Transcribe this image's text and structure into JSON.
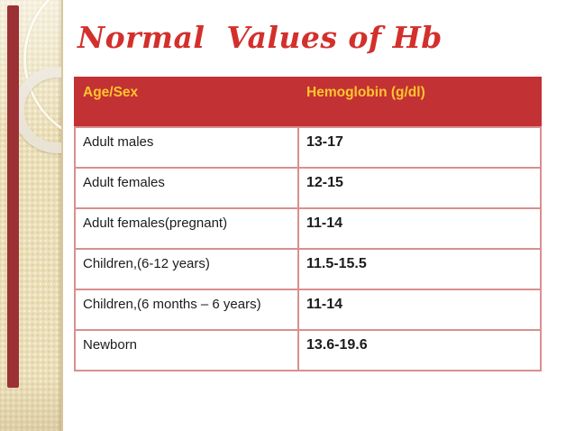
{
  "slide": {
    "title": "Normal  Values of Hb"
  },
  "table": {
    "columns": [
      "Age/Sex",
      "Hemoglobin (g/dl)"
    ],
    "rows": [
      {
        "label": "Adult males",
        "value": "13-17"
      },
      {
        "label": "Adult females",
        "value": "12-15"
      },
      {
        "label": "Adult females(pregnant)",
        "value": "11-14"
      },
      {
        "label": "Children,(6-12 years)",
        "value": "11.5-15.5"
      },
      {
        "label": "Children,(6 months – 6 years)",
        "value": "11-14"
      },
      {
        "label": "Newborn",
        "value": "13.6-19.6"
      }
    ]
  },
  "colors": {
    "title_color": "#d3302c",
    "header_bg": "#c23133",
    "header_text": "#ffc42e",
    "table_border": "#d98f8f",
    "sidebar_bg": "#ebdfb8",
    "accent_bar": "#9c3135",
    "body_text": "#1c1c1c"
  },
  "decorations": {
    "icons": [
      "ring-outline-icon",
      "thick-ring-icon"
    ]
  }
}
